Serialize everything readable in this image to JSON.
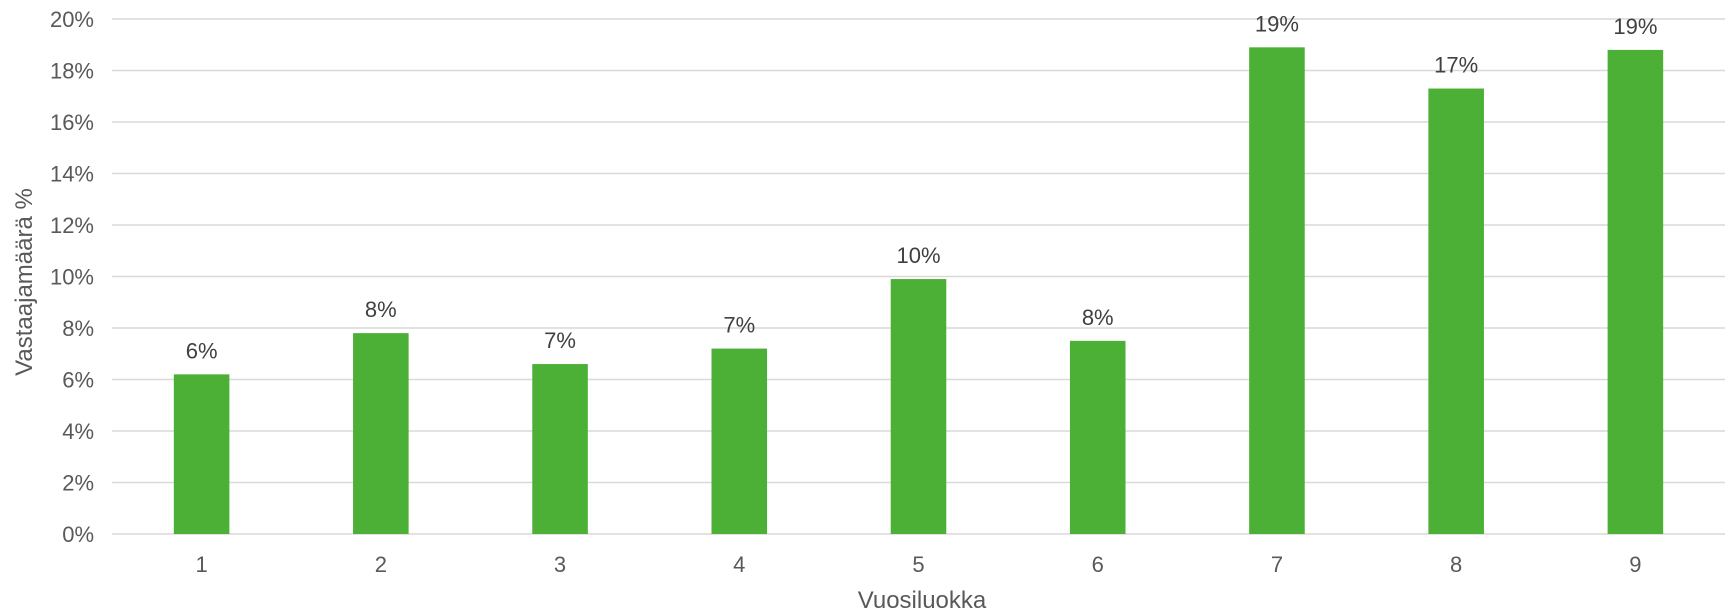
{
  "chart_data": {
    "type": "bar",
    "categories": [
      "1",
      "2",
      "3",
      "4",
      "5",
      "6",
      "7",
      "8",
      "9"
    ],
    "values": [
      6.2,
      7.8,
      6.6,
      7.2,
      9.9,
      7.5,
      18.9,
      17.3,
      18.8
    ],
    "data_labels": [
      "6%",
      "8%",
      "7%",
      "7%",
      "10%",
      "8%",
      "19%",
      "17%",
      "19%"
    ],
    "y_ticks": [
      0,
      2,
      4,
      6,
      8,
      10,
      12,
      14,
      16,
      18,
      20
    ],
    "y_tick_labels": [
      "0%",
      "2%",
      "4%",
      "6%",
      "8%",
      "10%",
      "12%",
      "14%",
      "16%",
      "18%",
      "20%"
    ],
    "ylim": [
      0,
      20
    ],
    "xlabel": "Vuosiluokka",
    "ylabel": "Vastaajamäärä %",
    "grid": true,
    "legend": "none",
    "bar_color": "#4caf36"
  }
}
